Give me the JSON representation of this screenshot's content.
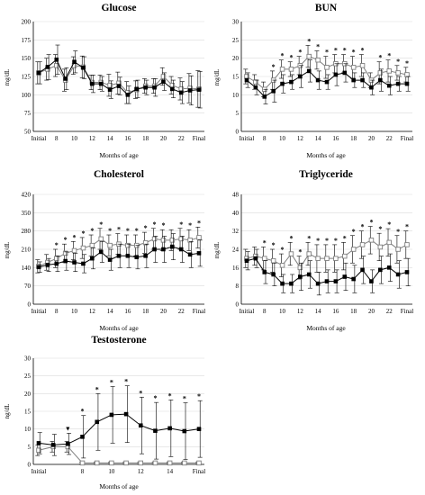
{
  "chart_data": [
    {
      "type": "line",
      "title": "Glucose",
      "ylabel": "mg/dL",
      "xlabel": "Months of age",
      "ylim": [
        50,
        200
      ],
      "yticks": [
        50,
        75,
        100,
        125,
        150,
        175,
        200
      ],
      "x_categories": [
        "Initial",
        "7",
        "8",
        "9",
        "10",
        "11",
        "12",
        "13",
        "14",
        "15",
        "16",
        "17",
        "18",
        "19",
        "20",
        "21",
        "22",
        "23",
        "Final"
      ],
      "x_tick_labels": [
        "Initial",
        "8",
        "10",
        "12",
        "14",
        "16",
        "18",
        "20",
        "22",
        "Final"
      ],
      "series": [
        {
          "marker": "open-square",
          "values": [
            130,
            135,
            140,
            120,
            140,
            138,
            117,
            117,
            113,
            116,
            103,
            107,
            112,
            112,
            125,
            113,
            108,
            109,
            108
          ],
          "err": [
            15,
            15,
            15,
            15,
            12,
            15,
            10,
            10,
            15,
            15,
            15,
            12,
            10,
            10,
            12,
            12,
            15,
            20,
            25
          ]
        },
        {
          "marker": "filled-square",
          "values": [
            130,
            138,
            148,
            122,
            145,
            137,
            115,
            115,
            107,
            112,
            100,
            108,
            110,
            110,
            118,
            108,
            103,
            106,
            107
          ],
          "err": [
            15,
            17,
            20,
            15,
            15,
            15,
            12,
            10,
            12,
            12,
            12,
            12,
            10,
            12,
            12,
            12,
            15,
            20,
            25
          ]
        }
      ],
      "significance": []
    },
    {
      "type": "line",
      "title": "BUN",
      "ylabel": "mg/dL",
      "xlabel": "Months of age",
      "ylim": [
        0,
        30
      ],
      "yticks": [
        0,
        5,
        10,
        15,
        20,
        25,
        30
      ],
      "x_categories": [
        "Initial",
        "7",
        "8",
        "9",
        "10",
        "11",
        "12",
        "13",
        "14",
        "15",
        "16",
        "17",
        "18",
        "19",
        "20",
        "21",
        "22",
        "23",
        "Final"
      ],
      "x_tick_labels": [
        "Initial",
        "8",
        "10",
        "12",
        "14",
        "16",
        "18",
        "20",
        "22",
        "Final"
      ],
      "series": [
        {
          "marker": "open-square",
          "values": [
            15,
            13.5,
            11.5,
            14,
            17,
            17,
            18,
            20.5,
            19.5,
            17.5,
            18.5,
            18.5,
            17.5,
            18,
            14,
            16,
            16.5,
            16,
            15.5
          ],
          "err": [
            2,
            2,
            2,
            2.5,
            2.5,
            2,
            2.5,
            3,
            2.5,
            3,
            2.5,
            2.5,
            3,
            3,
            2,
            3,
            3,
            2,
            2
          ]
        },
        {
          "marker": "filled-square",
          "values": [
            14,
            12,
            9.5,
            11,
            13,
            13.5,
            15,
            16.5,
            14,
            13.5,
            15.5,
            16,
            14,
            14,
            12,
            14,
            12.5,
            13,
            13
          ],
          "err": [
            2,
            2,
            2,
            3,
            2.5,
            2,
            3,
            3,
            2.5,
            2,
            3,
            2.5,
            2,
            2,
            2,
            3,
            2.5,
            2,
            2
          ]
        }
      ],
      "significance": [
        "9",
        "10",
        "11",
        "12",
        "13",
        "14",
        "15",
        "16",
        "17",
        "18",
        "19",
        "21",
        "22",
        "23",
        "Final"
      ]
    },
    {
      "type": "line",
      "title": "Cholesterol",
      "ylabel": "mg/dL",
      "xlabel": "Months of age",
      "ylim": [
        0,
        420
      ],
      "yticks": [
        0,
        70,
        140,
        210,
        280,
        350,
        420
      ],
      "x_categories": [
        "Initial",
        "7",
        "8",
        "9",
        "10",
        "11",
        "12",
        "13",
        "14",
        "15",
        "16",
        "17",
        "18",
        "19",
        "20",
        "21",
        "22",
        "23",
        "Final"
      ],
      "x_tick_labels": [
        "Initial",
        "8",
        "10",
        "12",
        "14",
        "16",
        "18",
        "20",
        "22",
        "Final"
      ],
      "series": [
        {
          "marker": "open-square",
          "values": [
            145,
            160,
            175,
            195,
            205,
            215,
            225,
            250,
            225,
            230,
            225,
            225,
            235,
            250,
            245,
            245,
            250,
            245,
            255
          ],
          "err": [
            25,
            30,
            35,
            35,
            35,
            40,
            40,
            40,
            40,
            40,
            40,
            40,
            40,
            40,
            40,
            40,
            40,
            40,
            40
          ]
        },
        {
          "marker": "filled-square",
          "values": [
            142,
            150,
            155,
            165,
            160,
            155,
            175,
            200,
            170,
            185,
            185,
            180,
            185,
            210,
            210,
            220,
            210,
            190,
            195
          ],
          "err": [
            20,
            25,
            30,
            35,
            35,
            35,
            40,
            40,
            40,
            45,
            45,
            45,
            45,
            50,
            50,
            50,
            50,
            50,
            50
          ]
        }
      ],
      "significance": [
        "8",
        "9",
        "10",
        "11",
        "12",
        "13",
        "14",
        "15",
        "16",
        "17",
        "18",
        "19",
        "20",
        "22",
        "23",
        "Final"
      ]
    },
    {
      "type": "line",
      "title": "Triglyceride",
      "ylabel": "mg/dL",
      "xlabel": "Months of age",
      "ylim": [
        0,
        48
      ],
      "yticks": [
        0,
        8,
        16,
        24,
        32,
        40,
        48
      ],
      "x_categories": [
        "Initial",
        "7",
        "8",
        "9",
        "10",
        "11",
        "12",
        "13",
        "14",
        "15",
        "16",
        "17",
        "18",
        "19",
        "20",
        "21",
        "22",
        "23",
        "Final"
      ],
      "x_tick_labels": [
        "Initial",
        "8",
        "10",
        "12",
        "14",
        "16",
        "18",
        "20",
        "22",
        "Final"
      ],
      "series": [
        {
          "marker": "open-square",
          "values": [
            20,
            21,
            20,
            19,
            17,
            22,
            16,
            22,
            20,
            20,
            20,
            21,
            24,
            26,
            28,
            25,
            27,
            24,
            26
          ],
          "err": [
            4,
            4,
            5,
            5,
            5,
            5,
            5,
            5,
            6,
            6,
            6,
            6,
            6,
            6,
            6,
            6,
            6,
            6,
            6
          ]
        },
        {
          "marker": "filled-square",
          "values": [
            19,
            20,
            14,
            13,
            9,
            9,
            12,
            13,
            9,
            10,
            10,
            12,
            11,
            15,
            10,
            15,
            16,
            13,
            14
          ],
          "err": [
            4,
            4,
            5,
            5,
            4,
            4,
            6,
            6,
            5,
            5,
            5,
            6,
            6,
            6,
            5,
            6,
            6,
            6,
            6
          ]
        }
      ],
      "significance": [
        "8",
        "9",
        "10",
        "11",
        "12",
        "13",
        "14",
        "15",
        "16",
        "17",
        "18",
        "19",
        "20",
        "21",
        "22",
        "23",
        "Final"
      ]
    },
    {
      "type": "line",
      "title": "Testosterone",
      "ylabel": "ng/dL",
      "xlabel": "Months of age",
      "ylim": [
        0,
        30
      ],
      "yticks": [
        0,
        5,
        10,
        15,
        20,
        25,
        30
      ],
      "x_categories": [
        "Initial",
        "6",
        "7",
        "8",
        "9",
        "10",
        "11",
        "12",
        "13",
        "14",
        "15",
        "Final"
      ],
      "x_tick_labels": [
        "Initial",
        "8",
        "10",
        "12",
        "14",
        "Final"
      ],
      "series": [
        {
          "marker": "open-square",
          "values": [
            4,
            5,
            5,
            0.4,
            0.4,
            0.4,
            0.4,
            0.4,
            0.4,
            0.4,
            0.4,
            0.4
          ],
          "err": [
            1.5,
            1.5,
            1.5,
            0.3,
            0.3,
            0.3,
            0.3,
            0.3,
            0.3,
            0.3,
            0.3,
            0.3
          ]
        },
        {
          "marker": "filled-square",
          "values": [
            6,
            5.5,
            5.8,
            7.8,
            12,
            14,
            14.2,
            11,
            9.5,
            10.2,
            9.4,
            10
          ],
          "err": [
            3,
            3,
            3,
            6,
            8,
            8,
            8,
            8,
            8,
            8,
            8,
            8
          ]
        }
      ],
      "significance": [
        "8",
        "9",
        "10",
        "11",
        "12",
        "13",
        "14",
        "15",
        "Final"
      ],
      "other_markers": [
        {
          "category": "7",
          "symbol": "▼"
        }
      ]
    }
  ]
}
